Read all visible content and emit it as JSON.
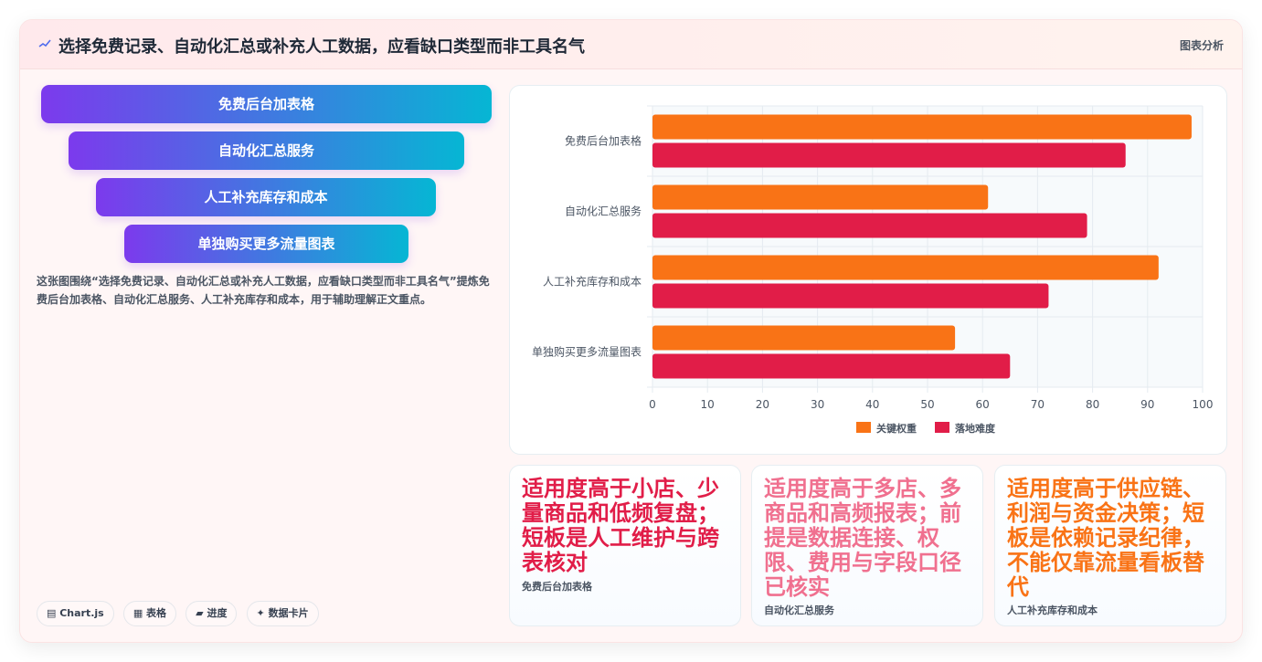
{
  "header": {
    "title": "选择免费记录、自动化汇总或补充人工数据，应看缺口类型而非工具名气",
    "tag": "图表分析"
  },
  "funnel": {
    "items": [
      "免费后台加表格",
      "自动化汇总服务",
      "人工补充库存和成本",
      "单独购买更多流量图表"
    ]
  },
  "description": "这张图围绕“选择免费记录、自动化汇总或补充人工数据，应看缺口类型而非工具名气”提炼免费后台加表格、自动化汇总服务、人工补充库存和成本，用于辅助理解正文重点。",
  "pills": [
    "▤ Chart.js",
    "▦ 表格",
    "▰ 进度",
    "✦ 数据卡片"
  ],
  "stats": [
    {
      "text": "适用度高于小店、少量商品和低频复盘；短板是人工维护与跨表核对",
      "label": "免费后台加表格",
      "color": "#e11d48"
    },
    {
      "text": "适用度高于多店、多商品和高频报表；前提是数据连接、权限、费用与字段口径已核实",
      "label": "自动化汇总服务",
      "color": "#f0708f"
    },
    {
      "text": "适用度高于供应链、利润与资金决策；短板是依赖记录纪律，不能仅靠流量看板替代",
      "label": "人工补充库存和成本",
      "color": "#f97316"
    }
  ],
  "chart_data": {
    "type": "bar",
    "orientation": "horizontal",
    "categories": [
      "免费后台加表格",
      "自动化汇总服务",
      "人工补充库存和成本",
      "单独购买更多流量图表"
    ],
    "series": [
      {
        "name": "关键权重",
        "values": [
          98,
          61,
          92,
          55
        ],
        "color": "#f97316"
      },
      {
        "name": "落地难度",
        "values": [
          86,
          79,
          72,
          65
        ],
        "color": "#e11d48"
      }
    ],
    "xlim": [
      0,
      100
    ],
    "xticks": [
      0,
      10,
      20,
      30,
      40,
      50,
      60,
      70,
      80,
      90,
      100
    ],
    "legend": "bottom",
    "grid": true
  }
}
